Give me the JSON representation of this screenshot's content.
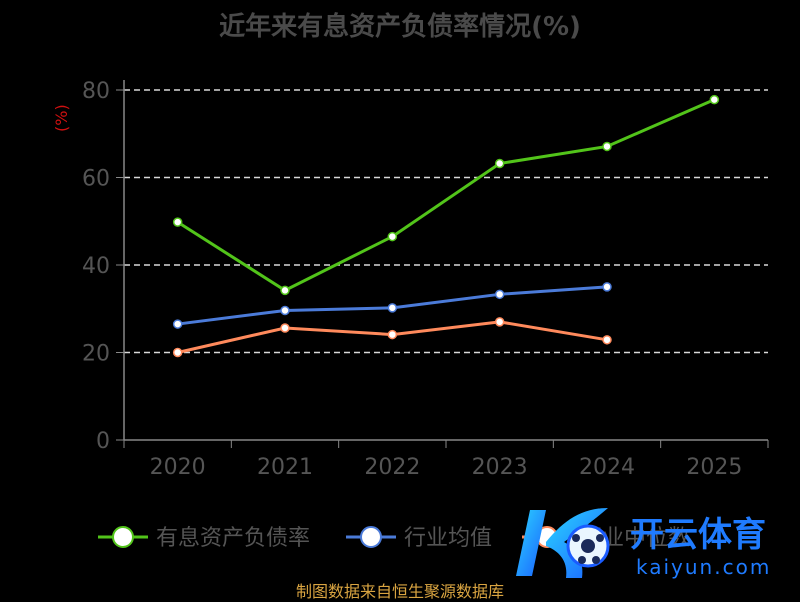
{
  "chart_data": {
    "type": "line",
    "title": "近年来有息资产负债率情况(%)",
    "ylabel": "(%)",
    "xlabel": "",
    "categories": [
      "2020",
      "2021",
      "2022",
      "2023",
      "2024",
      "2025"
    ],
    "ylim": [
      0,
      80
    ],
    "yticks": [
      0,
      20,
      40,
      60,
      80
    ],
    "grid": "horizontal-dashed",
    "legend_position": "bottom",
    "series": [
      {
        "name": "有息资产负债率",
        "color": "#52c41a",
        "values": [
          49.8,
          34.2,
          46.5,
          63.2,
          67.1,
          77.8
        ]
      },
      {
        "name": "行业均值",
        "color": "#4b7bd9",
        "values": [
          26.5,
          29.6,
          30.2,
          33.3,
          35.0,
          null
        ]
      },
      {
        "name": "行业中位数",
        "color": "#ff8a5c",
        "values": [
          20.0,
          25.6,
          24.1,
          27.0,
          22.9,
          null
        ]
      }
    ]
  },
  "source_text": "制图数据来自恒生聚源数据库",
  "watermark": {
    "brand": "开云体育",
    "domain": "kaiyun.com"
  }
}
